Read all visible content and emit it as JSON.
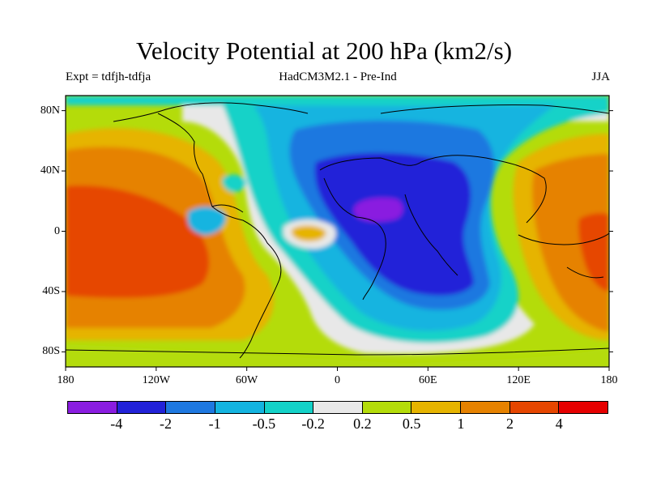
{
  "title": "Velocity Potential at 200 hPa (km2/s)",
  "subtitle_left": "Expt = tdfjh-tdfja",
  "subtitle_center": "HadCM3M2.1 - Pre-Ind",
  "subtitle_right": "JJA",
  "map": {
    "projection": "equirectangular",
    "lon_range": [
      -180,
      180
    ],
    "lat_range": [
      -90,
      90
    ],
    "lat_ticks": [
      {
        "label": "80N",
        "lat": 80
      },
      {
        "label": "40N",
        "lat": 40
      },
      {
        "label": "0",
        "lat": 0
      },
      {
        "label": "40S",
        "lat": -40
      },
      {
        "label": "80S",
        "lat": -80
      }
    ],
    "lon_ticks": [
      {
        "label": "180",
        "lon": -180
      },
      {
        "label": "120W",
        "lon": -120
      },
      {
        "label": "60W",
        "lon": -60
      },
      {
        "label": "0",
        "lon": 0
      },
      {
        "label": "60E",
        "lon": 60
      },
      {
        "label": "120E",
        "lon": 120
      },
      {
        "label": "180",
        "lon": 180
      }
    ],
    "features": [
      {
        "name": "pacific-positive-max",
        "description_value": "> 2",
        "lon": -160,
        "lat": -10,
        "sign": "positive"
      },
      {
        "name": "africa-negative-min",
        "description_value": "< -4",
        "lon": 30,
        "lat": 15,
        "sign": "negative"
      },
      {
        "name": "maritime-continent-positive",
        "description_value": "> 2",
        "lon": 170,
        "lat": -10,
        "sign": "positive"
      }
    ]
  },
  "colorbar": {
    "colors": [
      "#8a1de0",
      "#2222d8",
      "#1e78e0",
      "#14b4e0",
      "#14d2c8",
      "#e8e8e8",
      "#b4dc0a",
      "#e6b400",
      "#e68200",
      "#e64600",
      "#e60000"
    ],
    "labels": [
      "-4",
      "-2",
      "-1",
      "-0.5",
      "-0.2",
      "0.2",
      "0.5",
      "1",
      "2",
      "4"
    ]
  }
}
